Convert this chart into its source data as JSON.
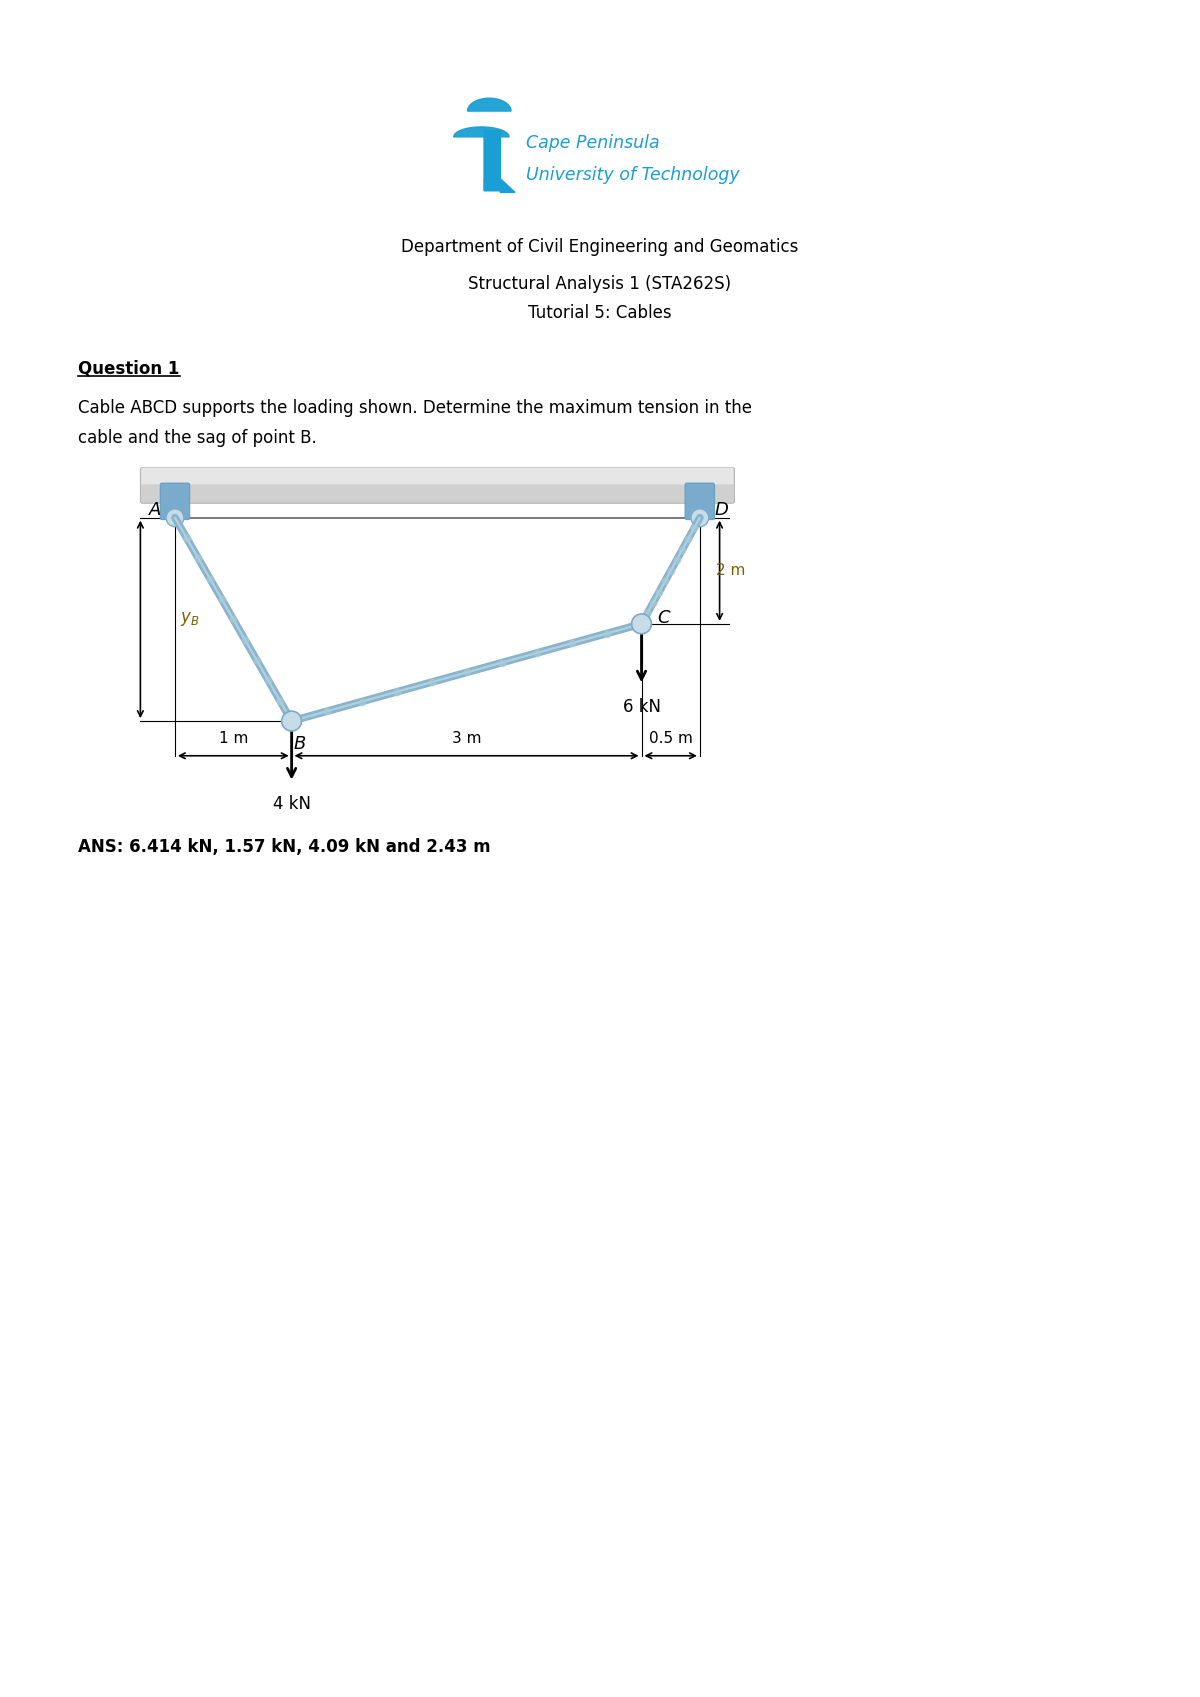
{
  "page_width": 12.0,
  "page_height": 16.97,
  "bg_color": "#ffffff",
  "dept_text": "Department of Civil Engineering and Geomatics",
  "course_text": "Structural Analysis 1 (STA262S)",
  "tutorial_text": "Tutorial 5: Cables",
  "question_label": "Question 1",
  "question_text_1": "Cable ABCD supports the loading shown. Determine the maximum tension in the",
  "question_text_2": "cable and the sag of point B.",
  "ans_text": "ANS: 6.414 kN, 1.57 kN, 4.09 kN and 2.43 m",
  "logo_color": "#1a9fd4",
  "cable_color": "#8ab4cc",
  "support_color": "#7aabcc",
  "text_color": "#000000",
  "dim_color": "#000000",
  "load_color": "#000000",
  "annotation_color": "#7f6000",
  "slab_color": "#d0d0d0",
  "slab_edge_color": "#aaaaaa",
  "pin_face_color": "#c8dce8",
  "pin_edge_color": "#7aabcc",
  "cable_highlight": "#d0e8f0"
}
